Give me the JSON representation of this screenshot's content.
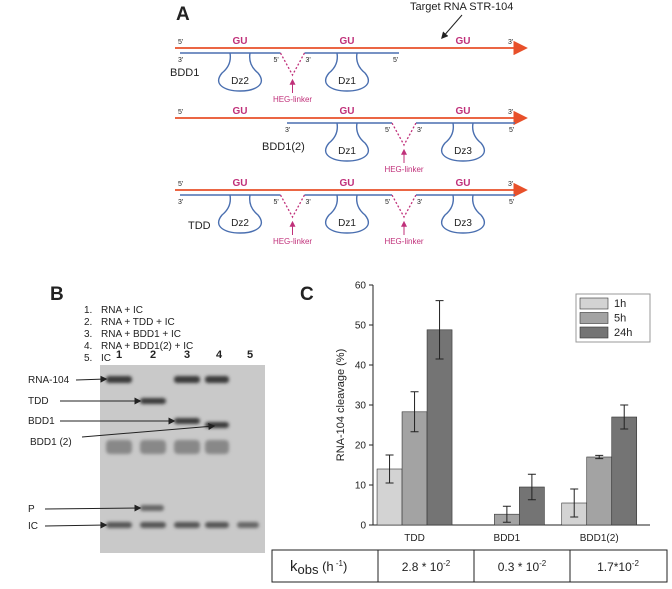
{
  "panel_a": {
    "label": "A",
    "target": "Target RNA STR-104",
    "end5": "5'",
    "end3": "3'",
    "site": "GU",
    "linker": "HEG-linker",
    "rows": [
      {
        "name": "BDD1",
        "dz": [
          "Dz2",
          "Dz1"
        ]
      },
      {
        "name": "BDD1(2)",
        "dz": [
          "Dz1",
          "Dz3"
        ]
      },
      {
        "name": "TDD",
        "dz": [
          "Dz2",
          "Dz1",
          "Dz3"
        ]
      }
    ]
  },
  "panel_b": {
    "label": "B",
    "legend_numbers": [
      "1.",
      "2.",
      "3.",
      "4.",
      "5."
    ],
    "legend": [
      "RNA + IC",
      "RNA + TDD + IC",
      "RNA + BDD1 + IC",
      "RNA + BDD1(2) + IC",
      "IC"
    ],
    "lanes": [
      "1",
      "2",
      "3",
      "4",
      "5"
    ],
    "bands": [
      "RNA-104",
      "TDD",
      "BDD1",
      "BDD1 (2)",
      "P",
      "IC"
    ]
  },
  "panel_c": {
    "label": "C"
  },
  "chart_data": {
    "type": "bar",
    "y_label": "RNA-104 cleavage (%)",
    "categories": [
      "TDD",
      "BDD1",
      "BDD1(2)"
    ],
    "series": [
      {
        "name": "1h",
        "color": "#d3d3d3",
        "values": [
          14,
          null,
          5.5
        ],
        "errors": [
          3.5,
          null,
          3.5
        ]
      },
      {
        "name": "5h",
        "color": "#a3a3a3",
        "values": [
          28.3,
          2.7,
          17
        ],
        "errors": [
          5,
          2,
          0.4
        ]
      },
      {
        "name": "24h",
        "color": "#747474",
        "values": [
          48.8,
          9.5,
          27
        ],
        "errors": [
          7.3,
          3.2,
          3
        ]
      }
    ],
    "ylim": [
      0,
      60
    ],
    "yticks": [
      0,
      10,
      20,
      30,
      40,
      50,
      60
    ],
    "legend": "upper right"
  },
  "table": {
    "row_label": {
      "k": "k",
      "sub": "obs",
      "unit": " (h",
      "exp": " -1",
      "close": ")"
    },
    "cells": [
      {
        "base": "2.8 * 10",
        "exp": "-2"
      },
      {
        "base": "0.3 * 10",
        "exp": "-2"
      },
      {
        "base": "1.7*10",
        "exp": "-2"
      }
    ]
  }
}
